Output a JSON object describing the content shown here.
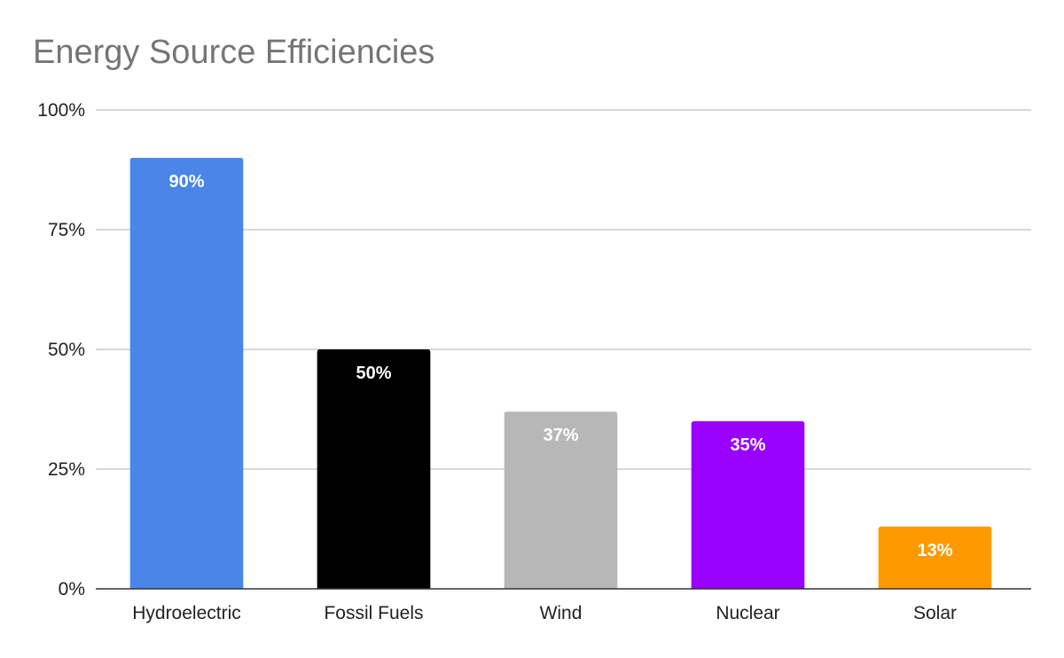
{
  "chart_data": {
    "type": "bar",
    "title": "Energy Source Efficiencies",
    "xlabel": "",
    "ylabel": "",
    "categories": [
      "Hydroelectric",
      "Fossil Fuels",
      "Wind",
      "Nuclear",
      "Solar"
    ],
    "values": [
      90,
      50,
      37,
      35,
      13
    ],
    "data_labels": [
      "90%",
      "50%",
      "37%",
      "35%",
      "13%"
    ],
    "bar_colors": [
      "#4a86e8",
      "#000000",
      "#b7b7b7",
      "#9900ff",
      "#ff9900"
    ],
    "ylim": [
      0,
      100
    ],
    "yticks": [
      0,
      25,
      50,
      75,
      100
    ],
    "ytick_labels": [
      "0%",
      "25%",
      "50%",
      "75%",
      "100%"
    ],
    "grid": true,
    "legend": "none"
  }
}
